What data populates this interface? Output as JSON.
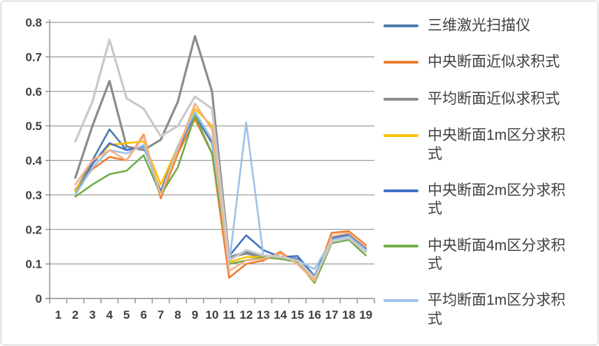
{
  "page": {
    "background": "#ffffff",
    "frame_border_color": "#c8c8c8"
  },
  "chart_data": {
    "type": "line",
    "title": "",
    "xlabel": "",
    "ylabel": "",
    "x_categories": [
      1,
      2,
      3,
      4,
      5,
      6,
      7,
      8,
      9,
      10,
      11,
      12,
      13,
      14,
      15,
      16,
      17,
      18,
      19
    ],
    "y_ticks": [
      "0",
      "0.1",
      "0.2",
      "0.3",
      "0.4",
      "0.5",
      "0.6",
      "0.7",
      "0.8"
    ],
    "ylim": [
      0,
      0.8
    ],
    "grid": "horizontal",
    "legend_position": "right",
    "axis_color": "#8c8c8c",
    "grid_color": "#9c9c9c",
    "text_color": "#3f3f3f",
    "note": "no data plotted at category 1; two extra unlabeled lines exist beyond the 7 legend entries",
    "series": [
      {
        "name": "三维激光扫描仪",
        "color": "#4e7cab",
        "in_legend": true,
        "values": [
          null,
          0.31,
          0.4,
          0.49,
          0.43,
          0.44,
          0.31,
          0.44,
          0.53,
          0.45,
          0.12,
          0.135,
          0.125,
          0.12,
          0.115,
          0.06,
          0.17,
          0.18,
          0.14
        ]
      },
      {
        "name": "中央断面近似求积式",
        "color": "#ed7d31",
        "in_legend": true,
        "values": [
          null,
          0.315,
          0.375,
          0.41,
          0.4,
          0.475,
          0.29,
          0.42,
          0.52,
          0.42,
          0.06,
          0.1,
          0.11,
          0.135,
          0.1,
          0.055,
          0.19,
          0.195,
          0.155
        ]
      },
      {
        "name": "平均断面近似求积式",
        "color": "#8c8c8c",
        "in_legend": true,
        "values": [
          null,
          0.35,
          0.5,
          0.63,
          0.44,
          0.43,
          0.46,
          0.57,
          0.76,
          0.6,
          0.12,
          0.13,
          0.12,
          0.115,
          0.11,
          0.06,
          0.17,
          0.18,
          0.14
        ]
      },
      {
        "name": "中央断面1m区分求积式",
        "color": "#ffc000",
        "in_legend": true,
        "values": [
          null,
          0.31,
          0.39,
          0.445,
          0.45,
          0.455,
          0.33,
          0.44,
          0.55,
          0.5,
          0.105,
          0.12,
          0.12,
          0.115,
          0.11,
          0.055,
          0.175,
          0.185,
          0.15
        ]
      },
      {
        "name": "中央断面2m区分求积式",
        "color": "#4472c4",
        "in_legend": true,
        "values": [
          null,
          0.3,
          0.39,
          0.45,
          0.43,
          0.44,
          0.31,
          0.43,
          0.54,
          0.46,
          0.123,
          0.183,
          0.14,
          0.12,
          0.123,
          0.065,
          0.175,
          0.185,
          0.145
        ]
      },
      {
        "name": "中央断面4m区分求积式",
        "color": "#70ad47",
        "in_legend": true,
        "values": [
          null,
          0.295,
          0.33,
          0.36,
          0.37,
          0.415,
          0.3,
          0.38,
          0.53,
          0.42,
          0.1,
          0.11,
          0.12,
          0.115,
          0.105,
          0.045,
          0.16,
          0.17,
          0.125
        ]
      },
      {
        "name": "平均断面1m区分求积式",
        "color": "#9dc3e6",
        "in_legend": true,
        "values": [
          null,
          0.3,
          0.38,
          0.43,
          0.42,
          0.445,
          0.3,
          0.44,
          0.54,
          0.46,
          0.1,
          0.51,
          0.125,
          0.12,
          0.11,
          0.085,
          0.17,
          0.18,
          0.14
        ]
      },
      {
        "name": "",
        "color": "#f4b183",
        "in_legend": false,
        "values": [
          null,
          0.33,
          0.4,
          0.43,
          0.4,
          0.47,
          0.3,
          0.43,
          0.565,
          0.49,
          0.08,
          0.11,
          0.115,
          0.13,
          0.1,
          0.05,
          0.18,
          0.19,
          0.15
        ]
      },
      {
        "name": "",
        "color": "#c9c9c9",
        "in_legend": false,
        "values": [
          null,
          0.455,
          0.57,
          0.75,
          0.58,
          0.55,
          0.47,
          0.5,
          0.585,
          0.55,
          0.11,
          0.14,
          0.125,
          0.12,
          0.11,
          0.06,
          0.165,
          0.175,
          0.135
        ]
      }
    ]
  }
}
